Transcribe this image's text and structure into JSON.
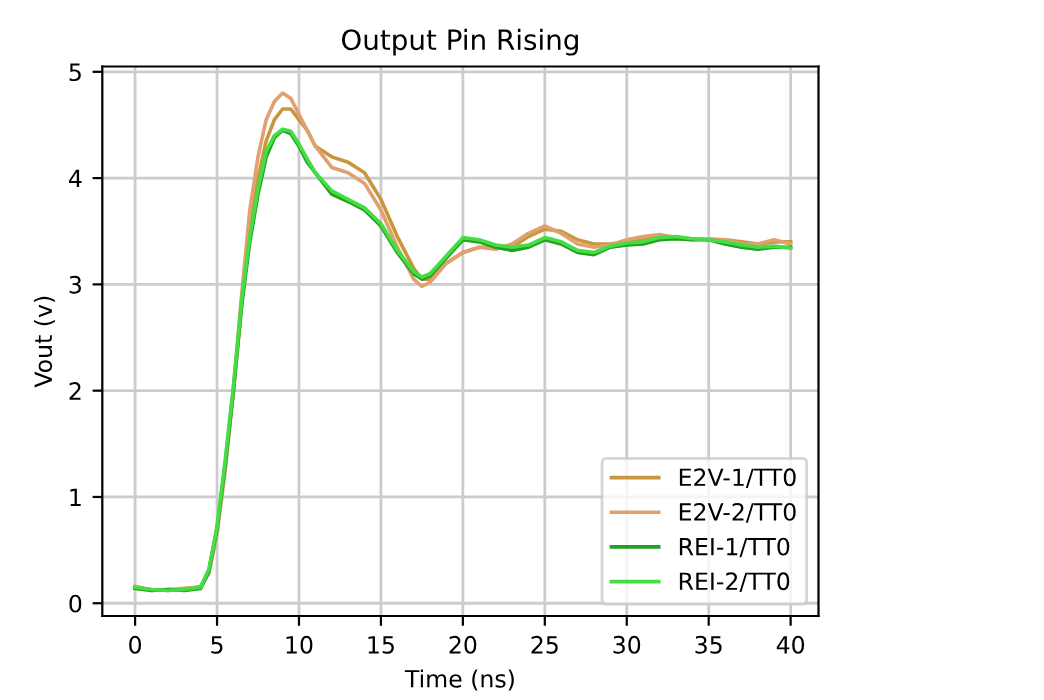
{
  "chart_data": {
    "type": "line",
    "title": "Output Pin Rising",
    "xlabel": "Time (ns)",
    "ylabel": "Vout (v)",
    "xlim": [
      -2,
      41.7
    ],
    "ylim": [
      -0.12,
      5.05
    ],
    "xticks": [
      0,
      5,
      10,
      15,
      20,
      25,
      30,
      35,
      40
    ],
    "yticks": [
      0,
      1,
      2,
      3,
      4,
      5
    ],
    "grid": true,
    "legend": "bottom right",
    "series": [
      {
        "name": "E2V-1/TT0",
        "color": "#c8963c",
        "x": [
          0,
          1,
          2,
          3,
          4,
          4.5,
          5,
          5.5,
          6,
          6.5,
          7,
          7.5,
          8,
          8.5,
          9,
          9.5,
          10,
          10.5,
          11,
          12,
          13,
          14,
          15,
          16,
          17,
          17.5,
          18,
          19,
          20,
          21,
          22,
          23,
          24,
          25,
          26,
          27,
          28,
          29,
          30,
          31,
          32,
          33,
          34,
          35,
          36,
          37,
          38,
          39,
          40
        ],
        "values": [
          0.15,
          0.13,
          0.12,
          0.14,
          0.15,
          0.3,
          0.7,
          1.3,
          2.0,
          2.8,
          3.5,
          4.0,
          4.35,
          4.55,
          4.65,
          4.65,
          4.55,
          4.45,
          4.3,
          4.2,
          4.15,
          4.05,
          3.8,
          3.45,
          3.15,
          3.05,
          3.05,
          3.2,
          3.3,
          3.35,
          3.35,
          3.35,
          3.45,
          3.52,
          3.5,
          3.42,
          3.38,
          3.38,
          3.4,
          3.42,
          3.45,
          3.43,
          3.43,
          3.42,
          3.42,
          3.4,
          3.38,
          3.4,
          3.4
        ]
      },
      {
        "name": "E2V-2/TT0",
        "color": "#e0a070",
        "x": [
          0,
          1,
          2,
          3,
          4,
          4.5,
          5,
          5.5,
          6,
          6.5,
          7,
          7.5,
          8,
          8.5,
          9,
          9.5,
          10,
          10.5,
          11,
          12,
          13,
          14,
          15,
          16,
          17,
          17.5,
          18,
          19,
          20,
          21,
          22,
          23,
          24,
          25,
          26,
          27,
          28,
          29,
          30,
          31,
          32,
          33,
          34,
          35,
          36,
          37,
          38,
          39,
          40
        ],
        "values": [
          0.16,
          0.12,
          0.13,
          0.13,
          0.16,
          0.28,
          0.65,
          1.25,
          2.0,
          2.9,
          3.7,
          4.2,
          4.55,
          4.72,
          4.8,
          4.75,
          4.6,
          4.45,
          4.3,
          4.1,
          4.05,
          3.95,
          3.7,
          3.35,
          3.05,
          2.98,
          3.02,
          3.2,
          3.3,
          3.35,
          3.33,
          3.38,
          3.48,
          3.55,
          3.48,
          3.38,
          3.35,
          3.37,
          3.42,
          3.45,
          3.47,
          3.44,
          3.42,
          3.43,
          3.42,
          3.38,
          3.38,
          3.42,
          3.38
        ]
      },
      {
        "name": "REI-1/TT0",
        "color": "#22a022",
        "x": [
          0,
          1,
          2,
          3,
          4,
          4.5,
          5,
          5.5,
          6,
          6.5,
          7,
          7.5,
          8,
          8.5,
          9,
          9.5,
          10,
          10.5,
          11,
          12,
          13,
          14,
          15,
          16,
          17,
          17.5,
          18,
          19,
          20,
          21,
          22,
          23,
          24,
          25,
          26,
          27,
          28,
          29,
          30,
          31,
          32,
          33,
          34,
          35,
          36,
          37,
          38,
          39,
          40
        ],
        "values": [
          0.14,
          0.12,
          0.13,
          0.12,
          0.14,
          0.3,
          0.7,
          1.3,
          2.0,
          2.8,
          3.4,
          3.85,
          4.2,
          4.38,
          4.45,
          4.42,
          4.3,
          4.15,
          4.05,
          3.85,
          3.78,
          3.7,
          3.55,
          3.3,
          3.1,
          3.05,
          3.08,
          3.25,
          3.42,
          3.4,
          3.35,
          3.32,
          3.35,
          3.42,
          3.38,
          3.3,
          3.28,
          3.35,
          3.37,
          3.38,
          3.42,
          3.43,
          3.42,
          3.42,
          3.38,
          3.35,
          3.33,
          3.35,
          3.35
        ]
      },
      {
        "name": "REI-2/TT0",
        "color": "#44dd44",
        "x": [
          0,
          1,
          2,
          3,
          4,
          4.5,
          5,
          5.5,
          6,
          6.5,
          7,
          7.5,
          8,
          8.5,
          9,
          9.5,
          10,
          10.5,
          11,
          12,
          13,
          14,
          15,
          16,
          17,
          17.5,
          18,
          19,
          20,
          21,
          22,
          23,
          24,
          25,
          26,
          27,
          28,
          29,
          30,
          31,
          32,
          33,
          34,
          35,
          36,
          37,
          38,
          39,
          40
        ],
        "values": [
          0.15,
          0.13,
          0.12,
          0.13,
          0.15,
          0.32,
          0.72,
          1.35,
          2.05,
          2.85,
          3.45,
          3.9,
          4.25,
          4.4,
          4.46,
          4.44,
          4.32,
          4.18,
          4.05,
          3.88,
          3.8,
          3.72,
          3.57,
          3.32,
          3.12,
          3.07,
          3.1,
          3.27,
          3.44,
          3.42,
          3.37,
          3.35,
          3.37,
          3.44,
          3.4,
          3.32,
          3.3,
          3.36,
          3.39,
          3.4,
          3.44,
          3.45,
          3.43,
          3.42,
          3.4,
          3.37,
          3.35,
          3.36,
          3.34
        ]
      }
    ]
  }
}
